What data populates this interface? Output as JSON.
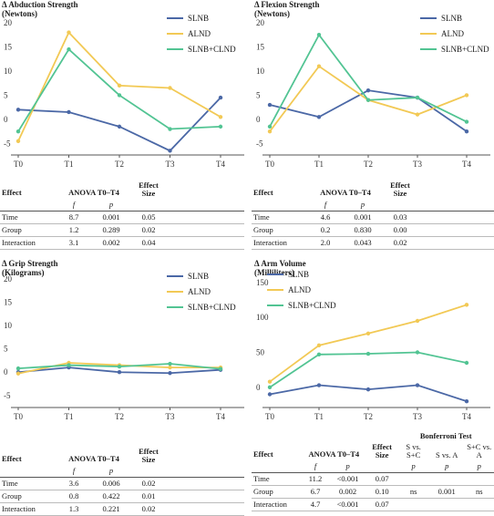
{
  "chart_data": [
    {
      "type": "line",
      "title": "Δ Abduction Strength",
      "subtitle": "(Newtons)",
      "categories": [
        "T0",
        "T1",
        "T2",
        "T3",
        "T4"
      ],
      "ylim": [
        -7,
        20
      ],
      "yticks": [
        -5,
        0,
        5,
        10,
        15,
        20
      ],
      "legend_position": "top-right",
      "series": [
        {
          "name": "SLNB",
          "values": [
            2.0,
            1.5,
            -1.5,
            -6.5,
            4.5
          ]
        },
        {
          "name": "ALND",
          "values": [
            -4.5,
            18.0,
            7.0,
            6.5,
            0.5
          ]
        },
        {
          "name": "SLNB+CLND",
          "values": [
            -2.5,
            14.5,
            5.0,
            -2.0,
            -1.5
          ]
        }
      ]
    },
    {
      "type": "line",
      "title": "Δ Flexion Strength",
      "subtitle": "(Newtons)",
      "categories": [
        "T0",
        "T1",
        "T2",
        "T3",
        "T4"
      ],
      "ylim": [
        -7,
        20
      ],
      "yticks": [
        -5,
        0,
        5,
        10,
        15,
        20
      ],
      "legend_position": "top-right",
      "series": [
        {
          "name": "SLNB",
          "values": [
            3.0,
            0.5,
            6.0,
            4.5,
            -2.5
          ]
        },
        {
          "name": "ALND",
          "values": [
            -2.5,
            11.0,
            4.0,
            1.0,
            5.0
          ]
        },
        {
          "name": "SLNB+CLND",
          "values": [
            -1.5,
            17.5,
            4.0,
            4.5,
            -0.5
          ]
        }
      ]
    },
    {
      "type": "line",
      "title": "Δ Grip Strength",
      "subtitle": "(Kilograms)",
      "categories": [
        "T0",
        "T1",
        "T2",
        "T3",
        "T4"
      ],
      "ylim": [
        -7,
        20
      ],
      "yticks": [
        -5,
        0,
        5,
        10,
        15,
        20
      ],
      "legend_position": "top-right",
      "series": [
        {
          "name": "SLNB",
          "values": [
            0.0,
            1.0,
            0.0,
            -0.2,
            0.5
          ]
        },
        {
          "name": "ALND",
          "values": [
            -0.3,
            2.0,
            1.5,
            1.0,
            1.0
          ]
        },
        {
          "name": "SLNB+CLND",
          "values": [
            0.8,
            1.5,
            1.2,
            1.8,
            0.7
          ]
        }
      ]
    },
    {
      "type": "line",
      "title": "Δ Arm Volume",
      "subtitle": "(Milliliters)",
      "categories": [
        "T0",
        "T1",
        "T2",
        "T3",
        "T4"
      ],
      "ylim": [
        -25,
        155
      ],
      "yticks": [
        0,
        50,
        100,
        150
      ],
      "legend_position": "top-left",
      "series": [
        {
          "name": "SLNB",
          "values": [
            -10,
            3,
            -3,
            3,
            -20
          ]
        },
        {
          "name": "ALND",
          "values": [
            8,
            60,
            77,
            95,
            118
          ]
        },
        {
          "name": "SLNB+CLND",
          "values": [
            0,
            47,
            48,
            50,
            35
          ]
        }
      ]
    }
  ],
  "colors": {
    "SLNB": "#4b68a6",
    "ALND": "#f2c955",
    "SLNB+CLND": "#52c493",
    "axis": "#333333",
    "text": "#1a1a1a"
  },
  "tables": {
    "abduction": {
      "anova_title": "ANOVA T0–T4",
      "col_effect": "Effect",
      "col_f": "f",
      "col_p": "p",
      "col_size": "Effect Size",
      "rows": [
        {
          "effect": "Time",
          "f": "8.7",
          "p": "0.001",
          "size": "0.05"
        },
        {
          "effect": "Group",
          "f": "1.2",
          "p": "0.289",
          "size": "0.02"
        },
        {
          "effect": "Interaction",
          "f": "3.1",
          "p": "0.002",
          "size": "0.04"
        }
      ]
    },
    "flexion": {
      "anova_title": "ANOVA T0–T4",
      "col_effect": "Effect",
      "col_f": "f",
      "col_p": "p",
      "col_size": "Effect Size",
      "rows": [
        {
          "effect": "Time",
          "f": "4.6",
          "p": "0.001",
          "size": "0.03"
        },
        {
          "effect": "Group",
          "f": "0.2",
          "p": "0.830",
          "size": "0.00"
        },
        {
          "effect": "Interaction",
          "f": "2.0",
          "p": "0.043",
          "size": "0.02"
        }
      ]
    },
    "grip": {
      "anova_title": "ANOVA T0–T4",
      "col_effect": "Effect",
      "col_f": "f",
      "col_p": "p",
      "col_size": "Effect Size",
      "rows": [
        {
          "effect": "Time",
          "f": "3.6",
          "p": "0.006",
          "size": "0.02"
        },
        {
          "effect": "Group",
          "f": "0.8",
          "p": "0.422",
          "size": "0.01"
        },
        {
          "effect": "Interaction",
          "f": "1.3",
          "p": "0.221",
          "size": "0.02"
        }
      ]
    },
    "volume": {
      "anova_title": "ANOVA T0–T4",
      "bonferroni_title": "Bonferroni Test",
      "col_effect": "Effect",
      "col_f": "f",
      "col_p": "p",
      "col_size": "Effect Size",
      "bonf_cols": [
        "S vs. S+C",
        "S vs. A",
        "S+C vs. A"
      ],
      "bonf_p": "p",
      "rows": [
        {
          "effect": "Time",
          "f": "11.2",
          "p": "<0.001",
          "size": "0.07",
          "b1": "",
          "b2": "",
          "b3": ""
        },
        {
          "effect": "Group",
          "f": "6.7",
          "p": "0.002",
          "size": "0.10",
          "b1": "ns",
          "b2": "0.001",
          "b3": "ns"
        },
        {
          "effect": "Interaction",
          "f": "4.7",
          "p": "<0.001",
          "size": "0.07",
          "b1": "",
          "b2": "",
          "b3": ""
        }
      ]
    }
  }
}
